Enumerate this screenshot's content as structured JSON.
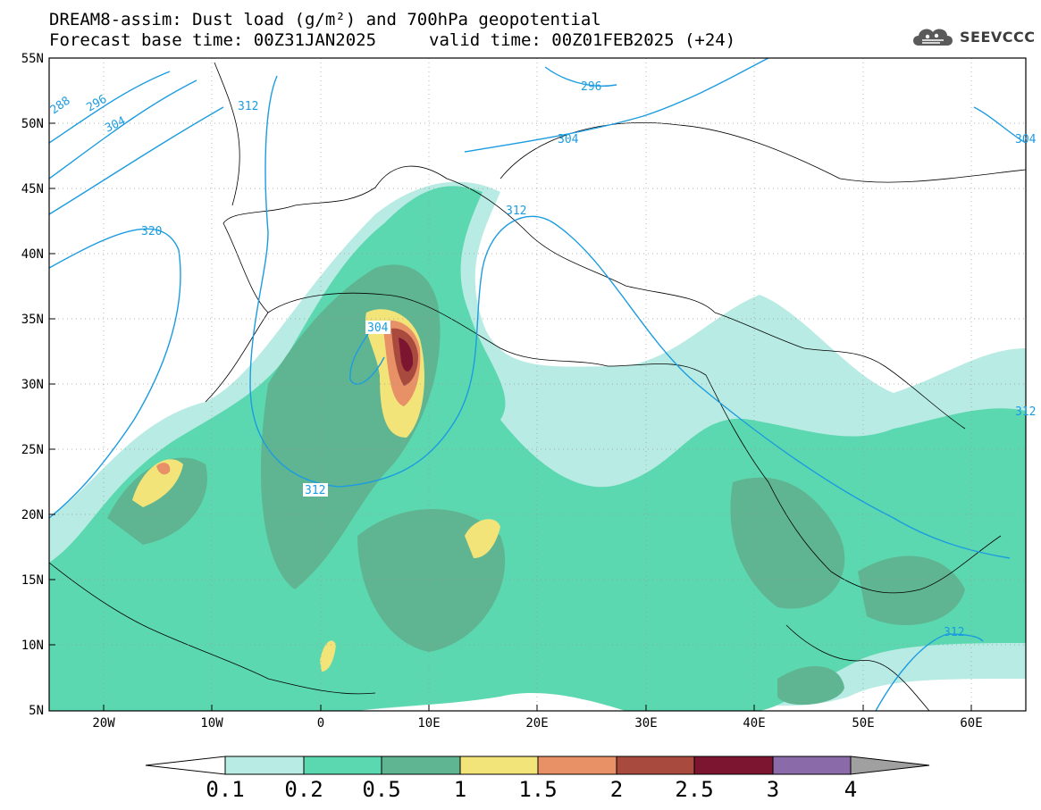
{
  "header": {
    "title_line1": "DREAM8-assim: Dust load (g/m²) and 700hPa geopotential",
    "title_line2a": "Forecast base time: 00Z31JAN2025",
    "title_line2b": "valid time: 00Z01FEB2025 (+24)",
    "logo_text": "SEEVCCC"
  },
  "axes": {
    "lat_labels": [
      "55N",
      "50N",
      "45N",
      "40N",
      "35N",
      "30N",
      "25N",
      "20N",
      "15N",
      "10N",
      "5N"
    ],
    "lon_labels": [
      "20W",
      "10W",
      "0",
      "10E",
      "20E",
      "30E",
      "40E",
      "50E",
      "60E"
    ]
  },
  "contour_labels": [
    "288",
    "296",
    "304",
    "312",
    "320",
    "296",
    "304",
    "312",
    "304",
    "312",
    "312",
    "304",
    "312"
  ],
  "colorbar": {
    "labels": [
      "0.1",
      "0.2",
      "0.5",
      "1",
      "1.5",
      "2",
      "2.5",
      "3",
      "4"
    ],
    "colors": [
      "#b8ebe3",
      "#5cd8b0",
      "#5fb591",
      "#f3e47a",
      "#e89066",
      "#a84a3e",
      "#7c1530",
      "#8a6aa8",
      "#a0a0a0"
    ]
  },
  "map_data": {
    "variable": "Dust load (g/m²)",
    "contour_variable": "700hPa geopotential",
    "lon_range": [
      -25,
      65
    ],
    "lat_range": [
      5,
      55
    ]
  }
}
